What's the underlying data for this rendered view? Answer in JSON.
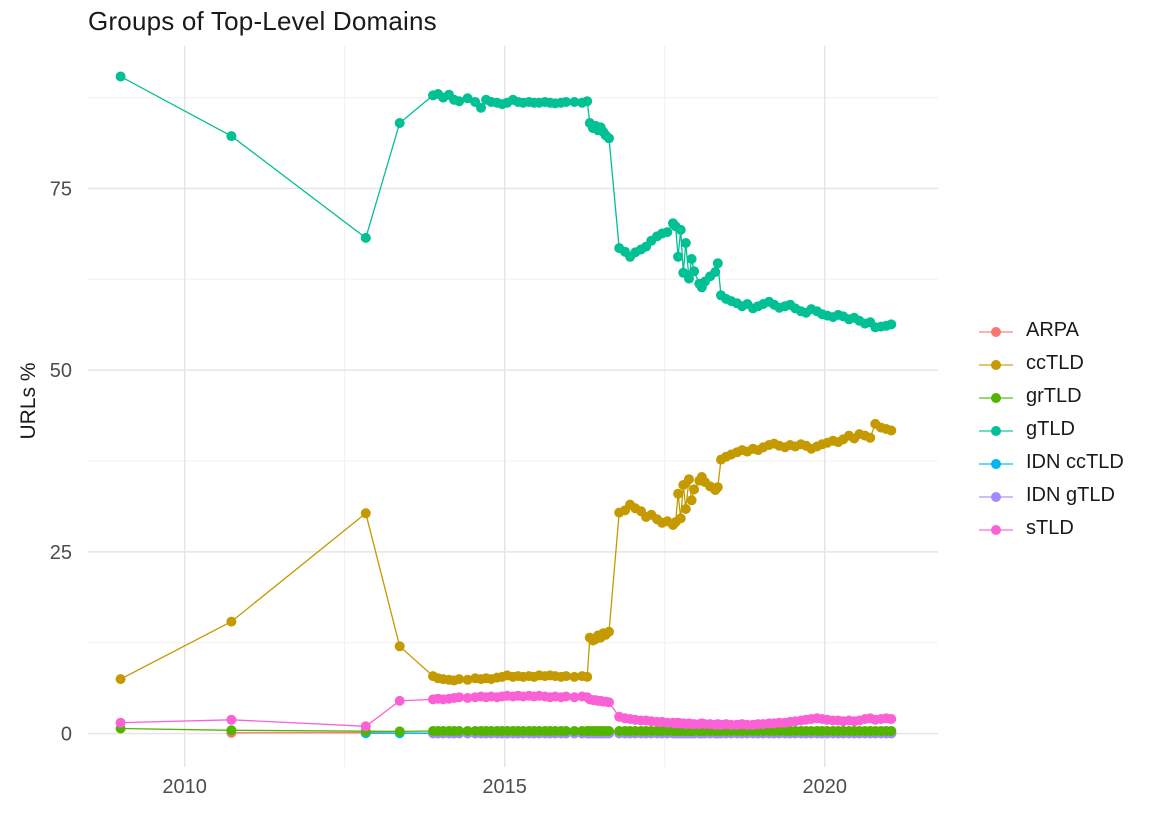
{
  "chart_data": {
    "type": "line",
    "title": "Groups of Top-Level Domains",
    "xlabel": "",
    "ylabel": "URLs %",
    "x_ticks": [
      2010,
      2015,
      2020
    ],
    "x_tick_labels": [
      "2010",
      "2015",
      "2020"
    ],
    "y_ticks": [
      0,
      25,
      50,
      75
    ],
    "y_tick_labels": [
      "0",
      "25",
      "50",
      "75"
    ],
    "xlim": [
      2008.49,
      2021.77
    ],
    "ylim": [
      -4.6,
      94.6
    ],
    "grid": true,
    "legend_position": "right",
    "marker": "point",
    "x_dense": [
      2013.88,
      2013.96,
      2014.04,
      2014.13,
      2014.21,
      2014.29,
      2014.42,
      2014.54,
      2014.63,
      2014.71,
      2014.79,
      2014.88,
      2014.96,
      2015.04,
      2015.13,
      2015.21,
      2015.29,
      2015.38,
      2015.46,
      2015.54,
      2015.63,
      2015.71,
      2015.79,
      2015.88,
      2015.96,
      2016.09,
      2016.21,
      2016.29,
      2016.33,
      2016.38,
      2016.42,
      2016.46,
      2016.5,
      2016.54,
      2016.58,
      2016.63,
      2016.79,
      2016.88,
      2016.96,
      2017.04,
      2017.13,
      2017.21,
      2017.29,
      2017.38,
      2017.46,
      2017.54,
      2017.63,
      2017.67,
      2017.71,
      2017.75,
      2017.79,
      2017.83,
      2017.88,
      2017.92,
      2017.96,
      2018.04,
      2018.08,
      2018.13,
      2018.21,
      2018.29,
      2018.33,
      2018.38,
      2018.46,
      2018.54,
      2018.63,
      2018.71,
      2018.79,
      2018.88,
      2018.96,
      2019.04,
      2019.13,
      2019.21,
      2019.29,
      2019.38,
      2019.46,
      2019.54,
      2019.63,
      2019.71,
      2019.79,
      2019.88,
      2019.96,
      2020.04,
      2020.13,
      2020.21,
      2020.29,
      2020.38,
      2020.46,
      2020.54,
      2020.63,
      2020.71,
      2020.79,
      2020.88,
      2020.96,
      2021.04
    ],
    "series": [
      {
        "name": "ARPA",
        "color": "#F8766D",
        "x_pre": [
          2010.73,
          2012.83
        ],
        "y_pre": [
          0.1,
          0.12
        ],
        "dense": true,
        "y_fill": 0.07
      },
      {
        "name": "ccTLD",
        "color": "#C49A00",
        "x_pre": [
          2009.0,
          2010.73,
          2012.83,
          2013.36
        ],
        "y_pre": [
          7.5,
          15.4,
          30.3,
          12.0
        ],
        "dense": true,
        "y_dense": [
          7.9,
          7.6,
          7.5,
          7.4,
          7.3,
          7.5,
          7.4,
          7.6,
          7.5,
          7.6,
          7.5,
          7.7,
          7.8,
          8.0,
          7.8,
          7.9,
          7.8,
          7.9,
          7.8,
          8.0,
          7.9,
          8.0,
          7.9,
          7.8,
          7.9,
          7.8,
          7.9,
          7.8,
          13.2,
          12.8,
          13.0,
          13.5,
          13.2,
          13.8,
          13.6,
          14.0,
          30.4,
          30.7,
          31.5,
          31.0,
          30.6,
          29.8,
          30.1,
          29.5,
          29.0,
          29.2,
          28.7,
          29.1,
          33.0,
          29.6,
          34.2,
          30.9,
          35.0,
          32.1,
          33.6,
          34.8,
          35.3,
          34.6,
          34.0,
          33.5,
          33.9,
          37.7,
          38.1,
          38.4,
          38.7,
          39.0,
          38.8,
          39.2,
          39.0,
          39.4,
          39.7,
          39.9,
          39.6,
          39.4,
          39.7,
          39.5,
          39.8,
          39.6,
          39.2,
          39.5,
          39.8,
          40.0,
          40.3,
          40.1,
          40.5,
          41.0,
          40.6,
          41.2,
          41.0,
          40.7,
          42.6,
          42.1,
          41.9,
          41.7
        ]
      },
      {
        "name": "grTLD",
        "color": "#53B400",
        "x_pre": [
          2009.0,
          2010.73,
          2012.83,
          2013.36
        ],
        "y_pre": [
          0.7,
          0.45,
          0.32,
          0.3
        ],
        "dense": true,
        "y_fill": 0.35
      },
      {
        "name": "gTLD",
        "color": "#00C094",
        "x_pre": [
          2009.0,
          2010.73,
          2012.83,
          2013.36
        ],
        "y_pre": [
          90.4,
          82.2,
          68.2,
          84.0
        ],
        "dense": true,
        "y_dense": [
          87.8,
          88.0,
          87.5,
          87.9,
          87.2,
          87.0,
          87.4,
          86.9,
          86.1,
          87.2,
          86.9,
          86.8,
          86.6,
          86.8,
          87.2,
          86.9,
          86.8,
          86.9,
          86.8,
          86.8,
          86.9,
          86.8,
          86.7,
          86.8,
          86.9,
          86.9,
          86.8,
          87.0,
          84.0,
          83.3,
          83.6,
          83.0,
          83.4,
          82.8,
          82.3,
          81.9,
          66.8,
          66.3,
          65.6,
          66.2,
          66.6,
          67.0,
          67.8,
          68.4,
          68.8,
          69.0,
          70.2,
          69.8,
          65.6,
          69.3,
          63.4,
          67.5,
          62.6,
          65.3,
          63.6,
          61.9,
          61.4,
          62.2,
          62.9,
          63.5,
          64.7,
          60.3,
          59.8,
          59.5,
          59.2,
          58.8,
          59.1,
          58.5,
          58.8,
          59.1,
          59.4,
          59.0,
          58.6,
          58.8,
          59.0,
          58.5,
          58.1,
          57.9,
          58.4,
          58.1,
          57.7,
          57.5,
          57.3,
          57.6,
          57.4,
          57.0,
          57.2,
          56.8,
          56.4,
          56.6,
          55.9,
          56.0,
          56.1,
          56.3
        ]
      },
      {
        "name": "IDN ccTLD",
        "color": "#00B6EB",
        "x_pre": [
          2012.83,
          2013.36
        ],
        "y_pre": [
          0.05,
          0.05
        ],
        "dense": true,
        "y_fill": 0.05
      },
      {
        "name": "IDN gTLD",
        "color": "#A58AFF",
        "x_pre": [],
        "y_pre": [],
        "dense": true,
        "y_fill": 0.02
      },
      {
        "name": "sTLD",
        "color": "#FB61D7",
        "x_pre": [
          2009.0,
          2010.73,
          2012.83,
          2013.36
        ],
        "y_pre": [
          1.5,
          1.9,
          1.0,
          4.5
        ],
        "dense": true,
        "y_dense": [
          4.7,
          4.8,
          4.7,
          4.8,
          4.9,
          5.0,
          4.9,
          5.0,
          5.1,
          5.0,
          5.1,
          5.0,
          5.1,
          5.2,
          5.1,
          5.2,
          5.1,
          5.2,
          5.1,
          5.2,
          5.1,
          5.0,
          5.1,
          5.0,
          5.1,
          5.0,
          5.1,
          5.0,
          4.7,
          4.6,
          4.6,
          4.5,
          4.5,
          4.4,
          4.4,
          4.3,
          2.3,
          2.1,
          2.0,
          1.9,
          1.8,
          1.8,
          1.7,
          1.6,
          1.6,
          1.5,
          1.5,
          1.4,
          1.5,
          1.4,
          1.4,
          1.3,
          1.4,
          1.3,
          1.3,
          1.3,
          1.4,
          1.3,
          1.3,
          1.2,
          1.3,
          1.2,
          1.3,
          1.2,
          1.2,
          1.3,
          1.2,
          1.2,
          1.3,
          1.3,
          1.4,
          1.4,
          1.5,
          1.5,
          1.6,
          1.7,
          1.8,
          1.9,
          2.0,
          2.1,
          2.0,
          1.9,
          1.8,
          1.8,
          1.7,
          1.8,
          1.7,
          1.8,
          2.0,
          2.1,
          1.9,
          2.0,
          2.1,
          2.0
        ]
      }
    ],
    "colors": {
      "grid_major": "#e4e4e4",
      "grid_minor": "#f0f0f0",
      "tick_text": "#4d4d4d",
      "title_text": "#1a1a1a",
      "background": "#ffffff"
    }
  }
}
